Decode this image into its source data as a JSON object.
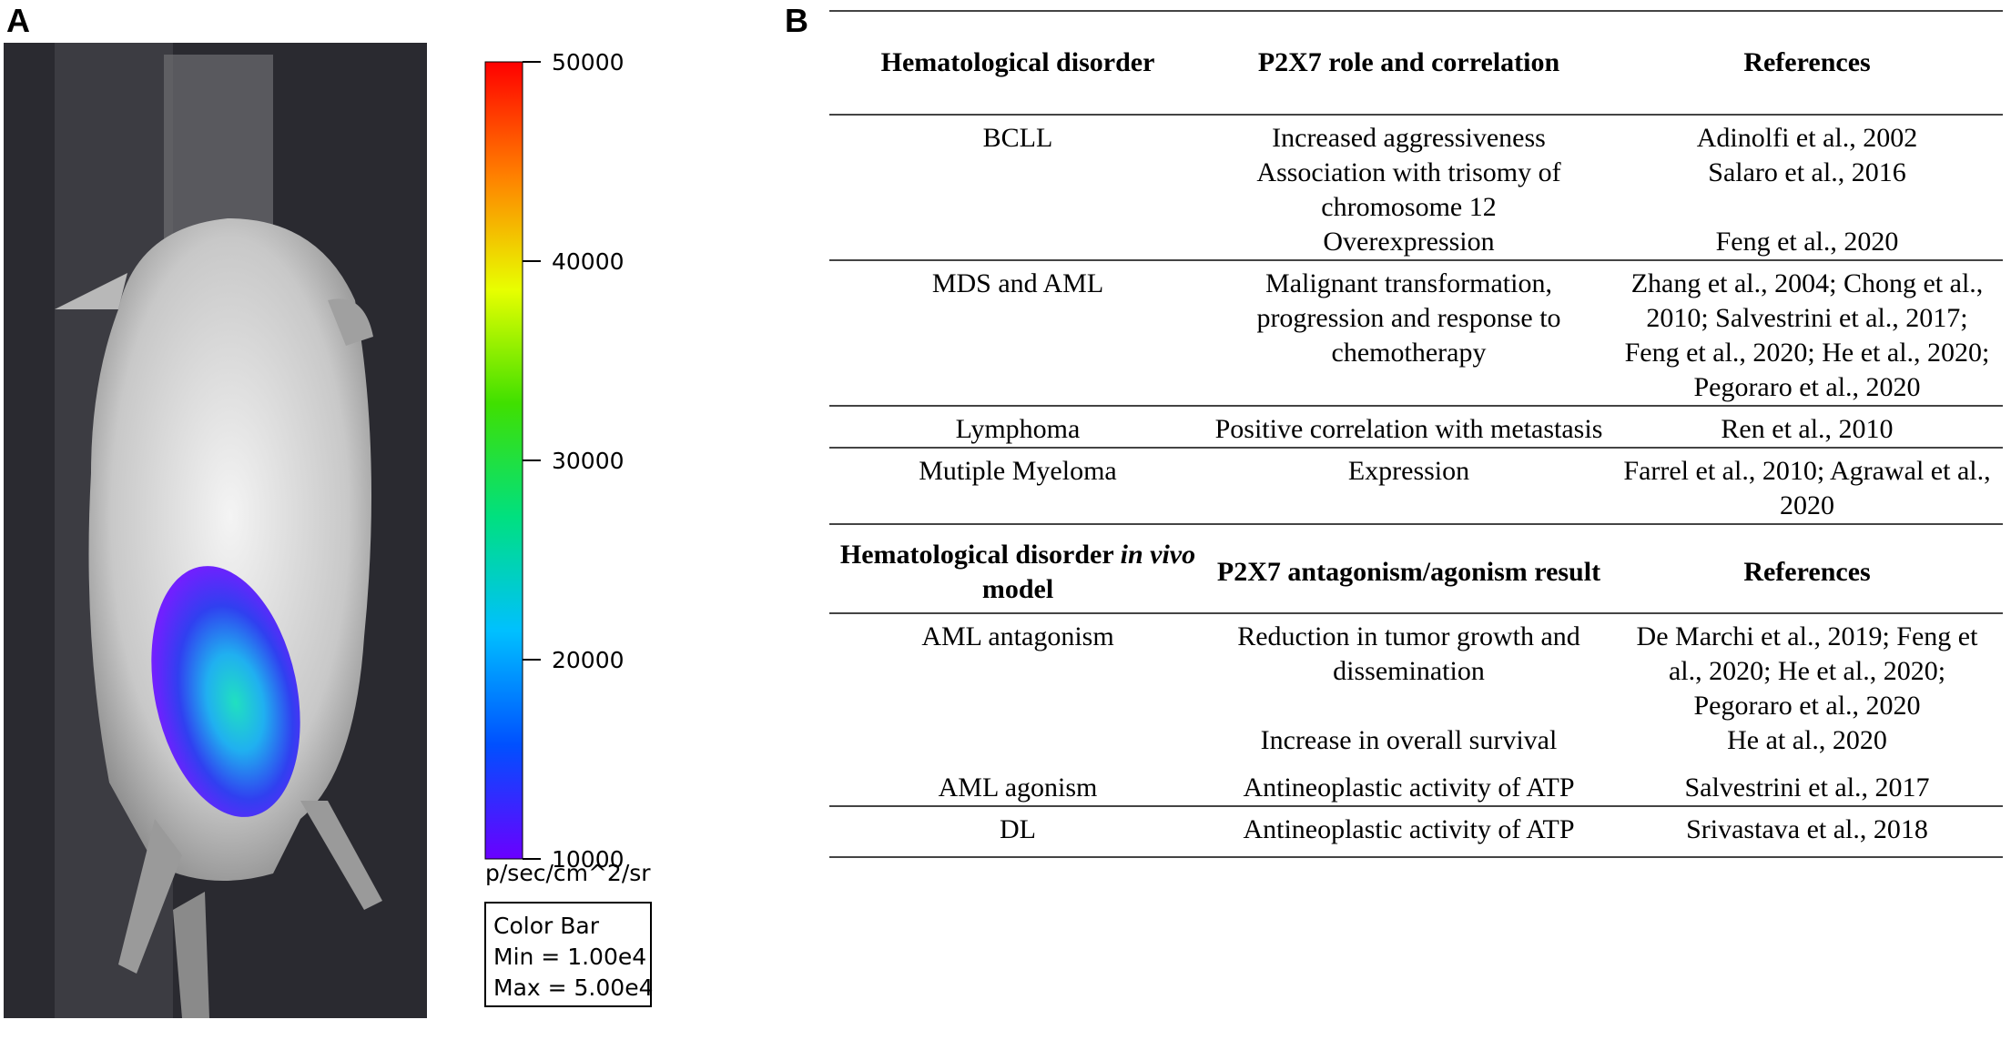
{
  "panels": {
    "a": {
      "label": "A",
      "colorbar": {
        "lim": [
          10000,
          50000
        ],
        "ticks": [
          50000,
          40000,
          30000,
          20000,
          10000
        ],
        "unit": "p/sec/cm^2/sr",
        "colors": [
          "#6a00ff",
          "#0050ff",
          "#00c0ff",
          "#00e080",
          "#40e000",
          "#e8ff00",
          "#ff8000",
          "#ff0000"
        ],
        "box": {
          "title": "Color Bar",
          "min": "Min = 1.00e4",
          "max": "Max = 5.00e4"
        }
      }
    },
    "b": {
      "label": "B",
      "sections": [
        {
          "header": [
            [
              {
                "text": "Hematological disorder"
              }
            ],
            [
              {
                "text": "P2X7 role and correlation"
              }
            ],
            [
              {
                "text": "References"
              }
            ]
          ],
          "groups": [
            {
              "disorder": "BCLL",
              "entries": [
                [
                  "Increased aggressiveness",
                  "Adinolfi et al., 2002"
                ],
                [
                  "Association with trisomy of chromosome 12",
                  "Salaro et al., 2016"
                ],
                [
                  "Overexpression",
                  "Feng et al., 2020"
                ]
              ]
            },
            {
              "disorder": "MDS and AML",
              "entries": [
                [
                  "Malignant transformation, progression and response to chemotherapy",
                  "Zhang et al., 2004; Chong et al., 2010; Salvestrini et al., 2017; Feng et al., 2020; He et al., 2020; Pegoraro et al., 2020"
                ]
              ]
            },
            {
              "disorder": "Lymphoma",
              "entries": [
                [
                  "Positive correlation with metastasis",
                  "Ren et al., 2010"
                ]
              ]
            },
            {
              "disorder": "Mutiple Myeloma",
              "entries": [
                [
                  "Expression",
                  "Farrel et al., 2010; Agrawal et al., 2020"
                ]
              ]
            }
          ]
        },
        {
          "header": [
            [
              {
                "text": "Hematological disorder "
              },
              {
                "text": "in vivo",
                "style": "italic"
              },
              {
                "text": " model"
              }
            ],
            [
              {
                "text": "P2X7 antagonism/agonism result"
              }
            ],
            [
              {
                "text": "References"
              }
            ]
          ],
          "groups": [
            {
              "disorder": "AML antagonism",
              "entries": [
                [
                  "Reduction in tumor growth and dissemination",
                  "De Marchi et al., 2019; Feng et al., 2020; He et al., 2020; Pegoraro et al., 2020"
                ],
                [
                  "Increase in overall survival",
                  "He at al., 2020"
                ]
              ]
            },
            {
              "disorder": "AML agonism",
              "entries": [
                [
                  "Antineoplastic activity of ATP",
                  "Salvestrini et al., 2017"
                ]
              ]
            },
            {
              "disorder": "DL",
              "entries": [
                [
                  "Antineoplastic activity of ATP",
                  "Srivastava et al., 2018"
                ]
              ]
            }
          ]
        }
      ]
    }
  }
}
